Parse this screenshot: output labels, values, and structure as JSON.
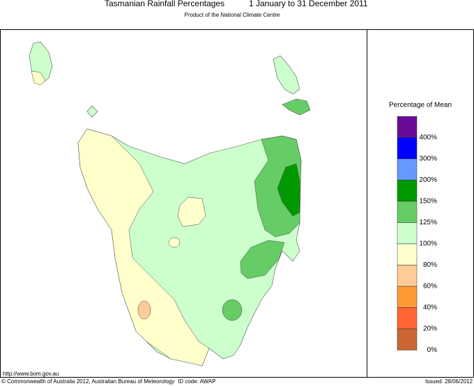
{
  "header": {
    "title": "Tasmanian Rainfall Percentages",
    "period": "1 January to 31 December 2011",
    "subtitle": "Product of the National Climate Centre"
  },
  "legend": {
    "title": "Percentage of Mean",
    "colors": [
      "#6a0a9a",
      "#0000ff",
      "#6699ff",
      "#009900",
      "#66cc66",
      "#ccffcc",
      "#ffffcc",
      "#ffcc99",
      "#ff9933",
      "#ff6633",
      "#cc6633"
    ],
    "labels": [
      "400%",
      "300%",
      "200%",
      "150%",
      "125%",
      "100%",
      "80%",
      "60%",
      "40%",
      "20%",
      "0%"
    ]
  },
  "footer": {
    "url": "http://www.bom.gov.au",
    "copyright": "© Commonwealth of Australia 2012, Australian Bureau of Meteorology",
    "id_code": "ID code: AWAP",
    "issued": "Issued: 28/06/2012"
  }
}
